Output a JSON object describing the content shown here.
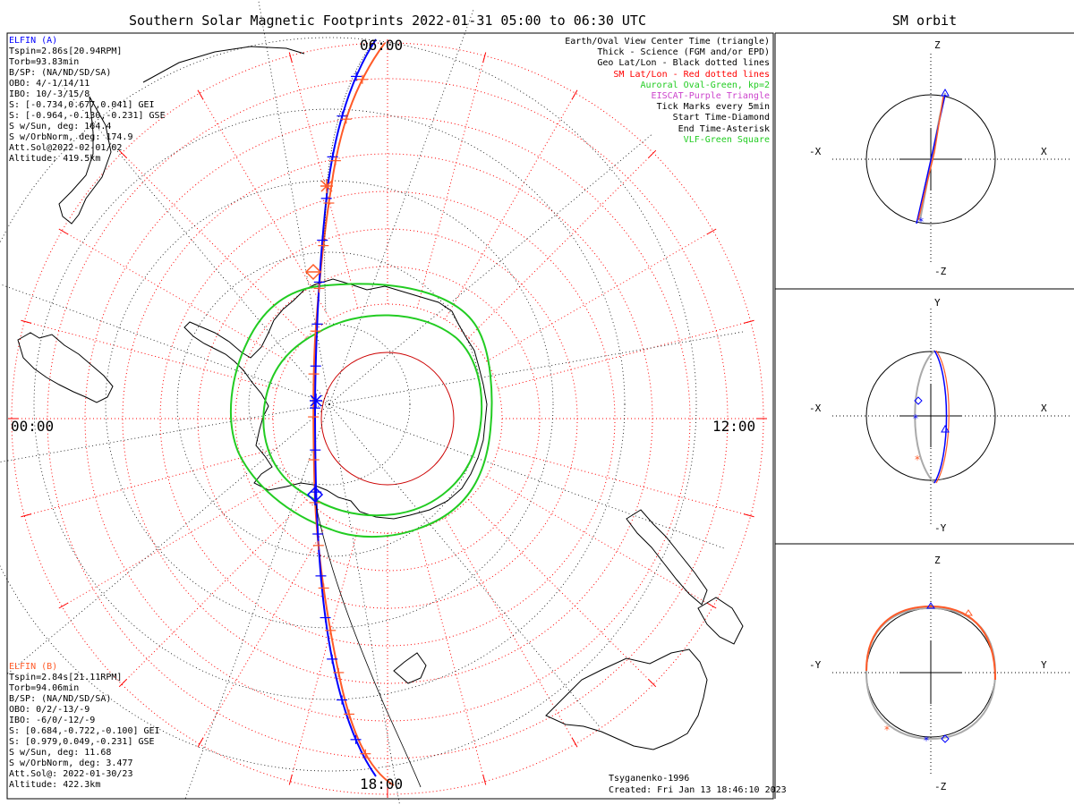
{
  "title": "Southern Solar Magnetic Footprints 2022-01-31 05:00 to 06:30 UTC",
  "sm_title": "SM orbit",
  "clock_labels": {
    "top": "06:00",
    "left": "00:00",
    "right": "12:00",
    "bottom": "18:00"
  },
  "elfin_a": {
    "name": "ELFIN (A)",
    "color": "#0000ff",
    "lines": [
      "Tspin=2.86s[20.94RPM]",
      "Torb=93.83min",
      "B/SP: (NA/ND/SD/SA)",
      "OBO: 4/-1/14/11",
      "IBO: 10/-3/15/8",
      "S: [-0.734,0.677,0.041] GEI",
      "S: [-0.964,-0.130,-0.231] GSE",
      "S w/Sun, deg: 164.4",
      "S w/OrbNorm, deg: 174.9",
      "Att.Sol@2022-02-01/02",
      "Altitude: 419.5km"
    ]
  },
  "elfin_b": {
    "name": "ELFIN (B)",
    "color": "#ff5a28",
    "lines": [
      "Tspin=2.84s[21.11RPM]",
      "Torb=94.06min",
      "B/SP: (NA/ND/SD/SA)",
      "OBO: 0/2/-13/-9",
      "IBO: -6/0/-12/-9",
      "S: [0.684,-0.722,-0.100] GEI",
      "S: [0.979,0.049,-0.231] GSE",
      "S w/Sun, deg: 11.68",
      "S w/OrbNorm, deg: 3.477",
      "Att.Sol@: 2022-01-30/23",
      "Altitude: 422.3km"
    ]
  },
  "legend": [
    {
      "text": "Earth/Oval View Center Time (triangle)",
      "color": "#000000"
    },
    {
      "text": "Thick - Science (FGM and/or EPD)",
      "color": "#000000"
    },
    {
      "text": "Geo Lat/Lon - Black dotted lines",
      "color": "#000000"
    },
    {
      "text": "SM Lat/Lon - Red dotted lines",
      "color": "#ff0000"
    },
    {
      "text": "Auroral Oval-Green, kp=2",
      "color": "#22cc22"
    },
    {
      "text": "EISCAT-Purple Triangle",
      "color": "#cc44cc"
    },
    {
      "text": "Tick Marks every 5min",
      "color": "#000000"
    },
    {
      "text": "Start Time-Diamond",
      "color": "#000000"
    },
    {
      "text": "End Time-Asterisk",
      "color": "#000000"
    },
    {
      "text": "VLF-Green Square",
      "color": "#22cc22"
    }
  ],
  "credit": "Tsyganenko-1996",
  "created": "Created: Fri Jan 13 18:46:10 2023",
  "sm_panels": [
    {
      "top": "Z",
      "bottom": "-Z",
      "left": "-X",
      "right": "X"
    },
    {
      "top": "Y",
      "bottom": "-Y",
      "left": "-X",
      "right": "X"
    },
    {
      "top": "Z",
      "bottom": "-Z",
      "left": "-Y",
      "right": "Y"
    }
  ],
  "colors": {
    "oval": "#22cc22",
    "sm_grid": "#ff0000",
    "geo_grid": "#000000",
    "orbit_gray": "#aaaaaa"
  }
}
